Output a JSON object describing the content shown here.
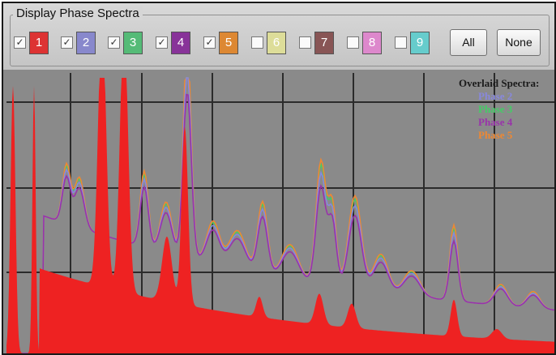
{
  "panel": {
    "title": "Display Phase Spectra"
  },
  "phases": [
    {
      "label": "1",
      "checked": true,
      "color": "#dd3333"
    },
    {
      "label": "2",
      "checked": true,
      "color": "#8888cc"
    },
    {
      "label": "3",
      "checked": true,
      "color": "#55bb77"
    },
    {
      "label": "4",
      "checked": true,
      "color": "#883399"
    },
    {
      "label": "5",
      "checked": true,
      "color": "#dd8833"
    },
    {
      "label": "6",
      "checked": false,
      "color": "#dddd99"
    },
    {
      "label": "7",
      "checked": false,
      "color": "#885555"
    },
    {
      "label": "8",
      "checked": false,
      "color": "#dd88cc"
    },
    {
      "label": "9",
      "checked": false,
      "color": "#66cccc"
    }
  ],
  "buttons": {
    "all": "All",
    "none": "None"
  },
  "legend": {
    "header": "Overlaid Spectra:",
    "entries": [
      {
        "label": "Phase 2",
        "color": "#8888dd"
      },
      {
        "label": "Phase 3",
        "color": "#44cc66"
      },
      {
        "label": "Phase 4",
        "color": "#9933aa"
      },
      {
        "label": "Phase 5",
        "color": "#ee8833"
      }
    ]
  },
  "spectrum_colors": {
    "background": "#8a8a8a",
    "phase1_fill": "#ee2222",
    "grid": "#2b2b2b"
  }
}
